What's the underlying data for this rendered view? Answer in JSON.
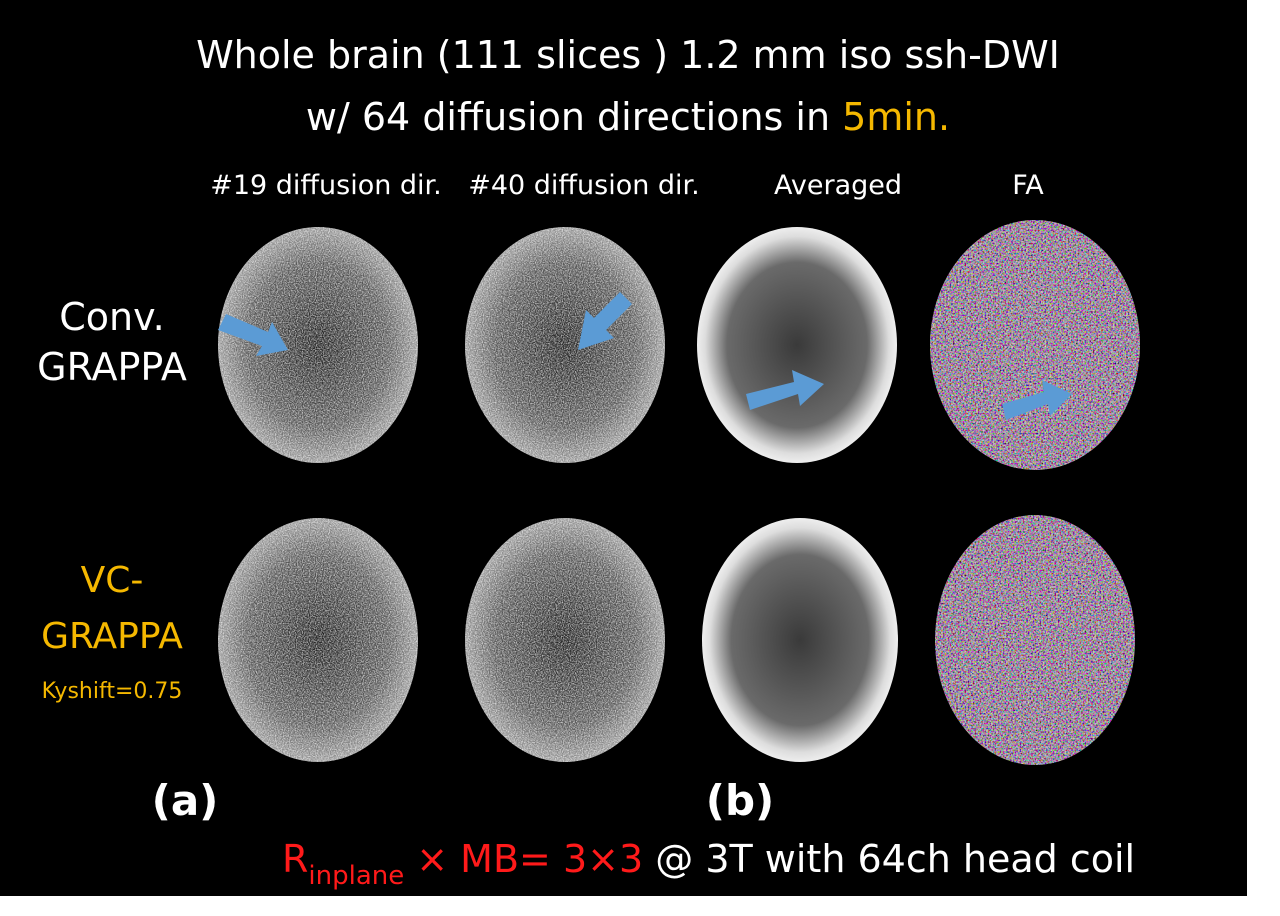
{
  "title": {
    "line1": "Whole brain (111 slices ) 1.2 mm iso ssh-DWI",
    "line2_prefix": "w/ 64 diffusion directions in ",
    "line2_highlight": "5min."
  },
  "columns": [
    "#19 diffusion dir.",
    "#40 diffusion dir.",
    "Averaged",
    "FA"
  ],
  "rows": [
    {
      "label_lines": [
        "Conv.",
        "GRAPPA"
      ]
    },
    {
      "label_lines": [
        "VC-",
        "GRAPPA"
      ],
      "note": "Kyshift=0.75"
    }
  ],
  "panels": [
    "(a)",
    "(b)"
  ],
  "footer": {
    "r": "R",
    "sub": "inplane",
    "times1": "×",
    "mb": " MB= 3",
    "times2": "×",
    "three": "3",
    "rest": " @ 3T with 64ch head coil"
  }
}
